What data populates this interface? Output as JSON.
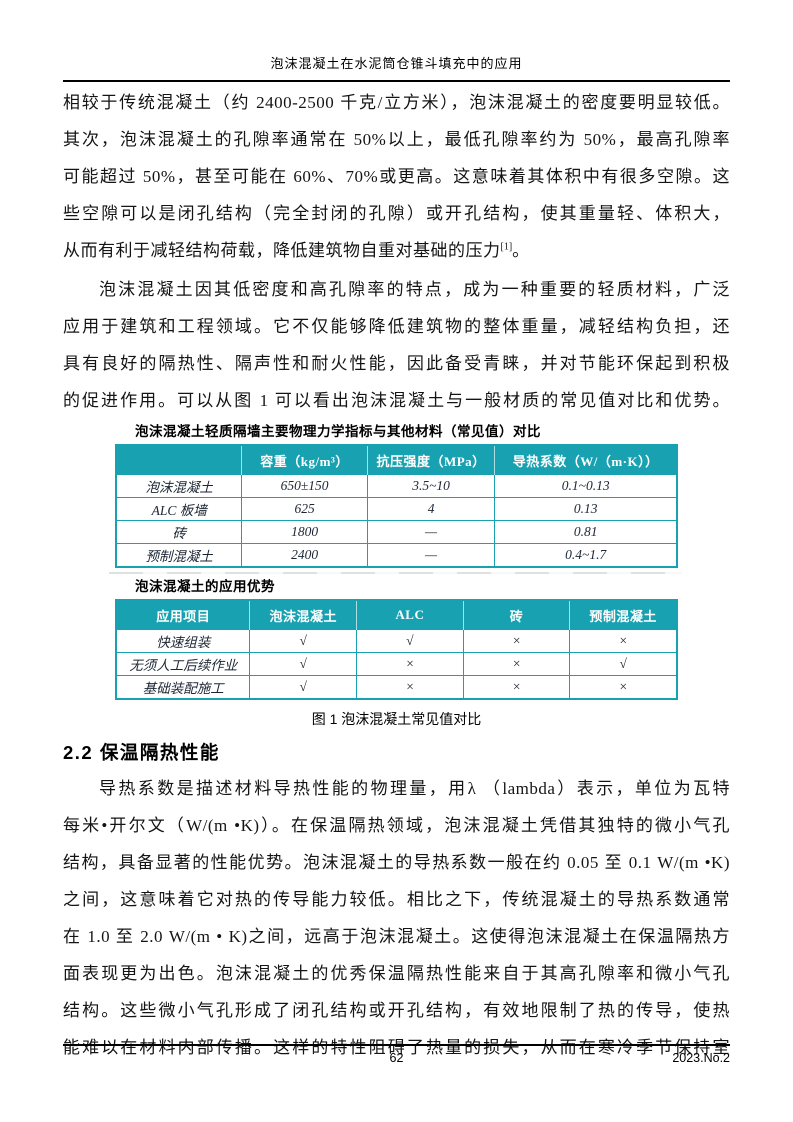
{
  "page": {
    "running_header": "泡沫混凝土在水泥筒仓锥斗填充中的应用",
    "footer": {
      "page_number": "62",
      "issue": "2023.No.2"
    }
  },
  "article": {
    "para1_lines": [
      "相较于传统混凝土（约 2400-2500 千克/立方米），泡沫混凝土的密度要明显较低。",
      "其次，泡沫混凝土的孔隙率通常在 50%以上，最低孔隙率约为 50%，最高孔隙率",
      "可能超过 50%，甚至可能在 60%、70%或更高。这意味着其体积中有很多空隙。这",
      "些空隙可以是闭孔结构（完全封闭的孔隙）或开孔结构，使其重量轻、体积大，"
    ],
    "para1_last": {
      "text": "从而有利于减轻结构荷载，降低建筑物自重对基础的压力",
      "ref": "[1]",
      "after": "。"
    },
    "para2_lines": [
      "泡沫混凝土因其低密度和高孔隙率的特点，成为一种重要的轻质材料，广泛",
      "应用于建筑和工程领域。它不仅能够降低建筑物的整体重量，减轻结构负担，还",
      "具有良好的隔热性、隔声性和耐火性能，因此备受青睐，并对节能环保起到积极",
      "的促进作用。可以从图 1 可以看出泡沫混凝土与一般材质的常见值对比和优势。"
    ],
    "figure_caption": "图 1  泡沫混凝土常见值对比",
    "section_heading": "2.2 保温隔热性能",
    "para3_lines": [
      "导热系数是描述材料导热性能的物理量，用λ （lambda）表示，单位为瓦特",
      "每米•开尔文（W/(m •K)）。在保温隔热领域，泡沫混凝土凭借其独特的微小气孔",
      "结构，具备显著的性能优势。泡沫混凝土的导热系数一般在约 0.05 至 0.1 W/(m •K)",
      "之间，这意味着它对热的传导能力较低。相比之下，传统混凝土的导热系数通常",
      "在 1.0 至 2.0 W/(m • K)之间，远高于泡沫混凝土。这使得泡沫混凝土在保温隔热方",
      "面表现更为出色。泡沫混凝土的优秀保温隔热性能来自于其高孔隙率和微小气孔",
      "结构。这些微小气孔形成了闭孔结构或开孔结构，有效地限制了热的传导，使热",
      "能难以在材料内部传播。这样的特性阻碍了热量的损失，从而在寒冷季节保持室"
    ]
  },
  "figure": {
    "accent_color": "#18A2B1",
    "table1": {
      "title": "泡沫混凝土轻质隔墙主要物理力学指标与其他材料（常见值）对比",
      "headers": [
        "",
        "容重（kg/m³）",
        "抗压强度（MPa）",
        "导热系数（W/（m·K））"
      ],
      "rows": [
        [
          "泡沫混凝土",
          "650±150",
          "3.5~10",
          "0.1~0.13"
        ],
        [
          "ALC 板墙",
          "625",
          "4",
          "0.13"
        ],
        [
          "砖",
          "1800",
          "—",
          "0.81"
        ],
        [
          "预制混凝土",
          "2400",
          "—",
          "0.4~1.7"
        ]
      ]
    },
    "table2": {
      "title": "泡沫混凝土的应用优势",
      "headers": [
        "应用项目",
        "泡沫混凝土",
        "ALC",
        "砖",
        "预制混凝土"
      ],
      "rows": [
        [
          "快速组装",
          "√",
          "√",
          "×",
          "×"
        ],
        [
          "无须人工后续作业",
          "√",
          "×",
          "×",
          "√"
        ],
        [
          "基础装配施工",
          "√",
          "×",
          "×",
          "×"
        ]
      ]
    }
  }
}
